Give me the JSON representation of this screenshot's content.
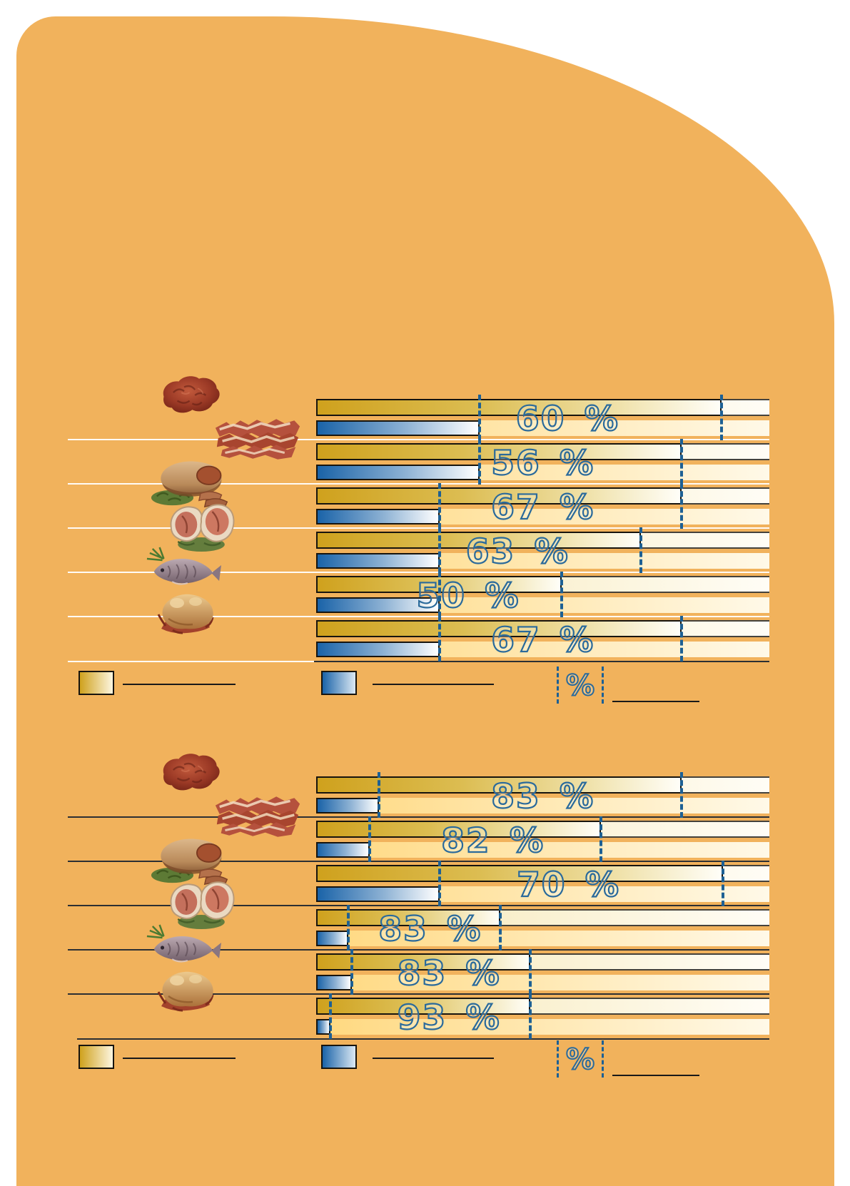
{
  "page": {
    "background_color": "#FFFFFF",
    "panel_color": "#F1B25C"
  },
  "colors": {
    "gold_bar_start": "#CFA11D",
    "gold_bar_end": "#FFFEF8",
    "blue_bar_start": "#1A63A8",
    "blue_bar_end": "#FFFFFF",
    "gold_track_start": "#F5E5AD",
    "gold_track_end": "#FFFDF6",
    "blue_track_start": "#FFD87E",
    "blue_track_end": "#FFF9E8",
    "dashed_marker": "#1D6094",
    "percent_outline": "#2A6A9B",
    "separator_chart1": "#FFFFFF",
    "separator_chart2": "#2C2F33"
  },
  "charts": [
    {
      "name": "bar-chart-top",
      "rows": [
        {
          "icon": "minced-meat-icon",
          "percent_label": "60 %",
          "gold_value": 89.5,
          "blue_value": 36.0
        },
        {
          "icon": "bacon-icon",
          "percent_label": "56 %",
          "gold_value": 80.7,
          "blue_value": 36.0
        },
        {
          "icon": "roast-icon",
          "percent_label": "67 %",
          "gold_value": 80.7,
          "blue_value": 27.2
        },
        {
          "icon": "chops-icon",
          "percent_label": "63 %",
          "gold_value": 71.7,
          "blue_value": 27.2
        },
        {
          "icon": "fish-icon",
          "percent_label": "50 %",
          "gold_value": 54.1,
          "blue_value": 27.2
        },
        {
          "icon": "poultry-icon",
          "percent_label": "67 %",
          "gold_value": 80.7,
          "blue_value": 27.2
        }
      ],
      "legend": {
        "gold_swatch_label": "",
        "blue_swatch_label": "",
        "percent_symbol": "%",
        "percent_line_label": ""
      }
    },
    {
      "name": "bar-chart-bottom",
      "rows": [
        {
          "icon": "minced-meat-icon",
          "percent_label": "83 %",
          "gold_value": 80.7,
          "blue_value": 13.8
        },
        {
          "icon": "bacon-icon",
          "percent_label": "82 %",
          "gold_value": 62.9,
          "blue_value": 11.8
        },
        {
          "icon": "roast-icon",
          "percent_label": "70 %",
          "gold_value": 89.8,
          "blue_value": 27.2
        },
        {
          "icon": "chops-icon",
          "percent_label": "83 %",
          "gold_value": 40.6,
          "blue_value": 7.1
        },
        {
          "icon": "fish-icon",
          "percent_label": "83 %",
          "gold_value": 47.3,
          "blue_value": 7.9
        },
        {
          "icon": "poultry-icon",
          "percent_label": "93 %",
          "gold_value": 47.3,
          "blue_value": 3.1
        }
      ],
      "legend": {
        "gold_swatch_label": "",
        "blue_swatch_label": "",
        "percent_symbol": "%",
        "percent_line_label": ""
      }
    }
  ],
  "chart_data": [
    {
      "type": "bar",
      "orientation": "horizontal",
      "title": "",
      "categories": [
        "minced meat",
        "bacon",
        "roast",
        "chops",
        "fish",
        "poultry"
      ],
      "series": [
        {
          "name": "gold-bar",
          "values": [
            89.5,
            80.7,
            80.7,
            71.7,
            54.1,
            80.7
          ]
        },
        {
          "name": "blue-bar",
          "values": [
            36.0,
            36.0,
            27.2,
            27.2,
            27.2,
            27.2
          ]
        }
      ],
      "data_labels": [
        "60 %",
        "56 %",
        "67 %",
        "63 %",
        "50 %",
        "67 %"
      ],
      "value_scale": "percent of full track width (full track = 100)",
      "xlim": [
        0,
        100
      ],
      "grid": false,
      "legend_position": "bottom",
      "legend_labels": [
        "",
        "",
        "%"
      ]
    },
    {
      "type": "bar",
      "orientation": "horizontal",
      "title": "",
      "categories": [
        "minced meat",
        "bacon",
        "roast",
        "chops",
        "fish",
        "poultry"
      ],
      "series": [
        {
          "name": "gold-bar",
          "values": [
            80.7,
            62.9,
            89.8,
            40.6,
            47.3,
            47.3
          ]
        },
        {
          "name": "blue-bar",
          "values": [
            13.8,
            11.8,
            27.2,
            7.1,
            7.9,
            3.1
          ]
        }
      ],
      "data_labels": [
        "83 %",
        "82 %",
        "70 %",
        "83 %",
        "83 %",
        "93 %"
      ],
      "value_scale": "percent of full track width (full track = 100)",
      "xlim": [
        0,
        100
      ],
      "grid": false,
      "legend_position": "bottom",
      "legend_labels": [
        "",
        "",
        "%"
      ]
    }
  ]
}
